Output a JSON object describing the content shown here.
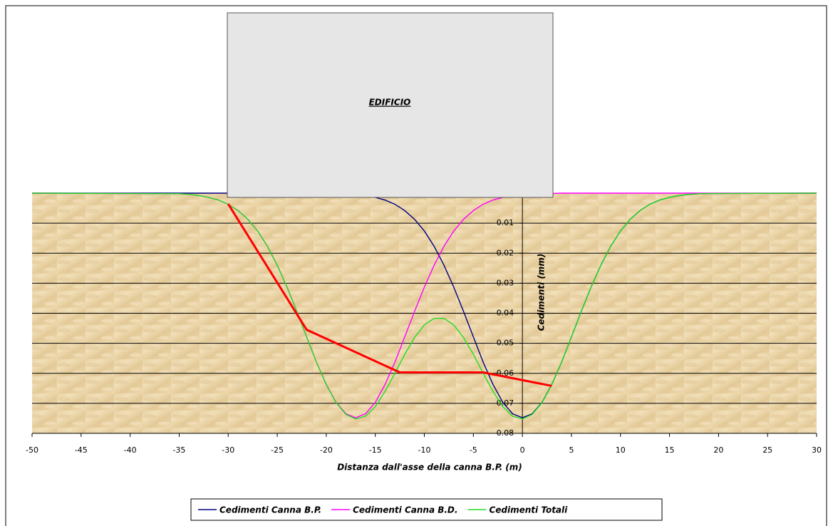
{
  "chart_data": {
    "type": "line",
    "annotation": "EDIFICIO",
    "xlabel": "Distanza dall'asse della canna B.P. (m)",
    "ylabel": "Cedimenti (mm)",
    "xlim": [
      -50,
      30
    ],
    "xticks": [
      -50,
      -45,
      -40,
      -35,
      -30,
      -25,
      -20,
      -15,
      -10,
      -5,
      0,
      5,
      10,
      15,
      20,
      25,
      30
    ],
    "ylim": [
      0,
      0.08
    ],
    "y_inverted": true,
    "yticks": [
      0.01,
      0.02,
      0.03,
      0.04,
      0.05,
      0.06,
      0.07,
      0.08
    ],
    "grid": true,
    "legend": "bottom",
    "x": [
      -50,
      -35,
      -34,
      -33,
      -32,
      -31,
      -30,
      -29,
      -28,
      -27,
      -26,
      -25,
      -24,
      -23,
      -22,
      -21,
      -20,
      -19,
      -18,
      -17,
      -16,
      -15,
      -14,
      -13,
      -12,
      -11,
      -10,
      -9,
      -8,
      -7,
      -6,
      -5,
      -4,
      -3,
      -2,
      -1,
      0,
      1,
      2,
      3,
      4,
      5,
      6,
      7,
      8,
      9,
      10,
      11,
      12,
      13,
      14,
      15,
      16,
      17,
      18,
      19,
      20,
      30
    ],
    "series": [
      {
        "name": "Cedimenti Canna B.P.",
        "color": "#000080",
        "values": [
          0,
          0,
          0,
          0,
          0,
          0,
          0,
          0,
          0,
          0,
          0,
          0,
          0,
          0,
          0,
          0,
          0.0001,
          0.0001,
          0.0002,
          0.0004,
          0.0008,
          0.0014,
          0.0023,
          0.0037,
          0.0058,
          0.0087,
          0.0126,
          0.0177,
          0.024,
          0.0313,
          0.0394,
          0.0479,
          0.0563,
          0.0637,
          0.0697,
          0.0735,
          0.0748,
          0.0735,
          0.0697,
          0.0637,
          0.0563,
          0.0479,
          0.0394,
          0.0313,
          0.024,
          0.0177,
          0.0126,
          0.0087,
          0.0058,
          0.0037,
          0.0023,
          0.0014,
          0.0008,
          0.0004,
          0.0002,
          0.0001,
          0.0001,
          0
        ]
      },
      {
        "name": "Cedimenti Canna B.D.",
        "color": "#ff00ff",
        "values": [
          0,
          0.0002,
          0.0004,
          0.0008,
          0.0014,
          0.0023,
          0.0037,
          0.0058,
          0.0087,
          0.0126,
          0.0177,
          0.024,
          0.0313,
          0.0394,
          0.0479,
          0.0563,
          0.0637,
          0.0697,
          0.0735,
          0.0748,
          0.0735,
          0.0697,
          0.0637,
          0.0563,
          0.0479,
          0.0394,
          0.0313,
          0.024,
          0.0177,
          0.0126,
          0.0087,
          0.0058,
          0.0037,
          0.0023,
          0.0014,
          0.0008,
          0.0004,
          0.0002,
          0.0001,
          0.0001,
          0,
          0,
          0,
          0,
          0,
          0,
          0,
          0,
          0,
          0,
          0,
          0,
          0,
          0,
          0,
          0,
          0,
          0
        ]
      },
      {
        "name": "Cedimenti Totali",
        "color": "#22dd22",
        "values": [
          0,
          0.0002,
          0.0004,
          0.0008,
          0.0014,
          0.0023,
          0.0037,
          0.0058,
          0.0087,
          0.0126,
          0.0177,
          0.024,
          0.0313,
          0.0394,
          0.0479,
          0.0563,
          0.0638,
          0.0698,
          0.0737,
          0.0752,
          0.0743,
          0.0711,
          0.066,
          0.06,
          0.0537,
          0.0481,
          0.0439,
          0.0417,
          0.0417,
          0.0439,
          0.0481,
          0.0537,
          0.06,
          0.066,
          0.0711,
          0.0743,
          0.0752,
          0.0737,
          0.0698,
          0.0638,
          0.0563,
          0.0479,
          0.0394,
          0.0313,
          0.024,
          0.0177,
          0.0126,
          0.0087,
          0.0058,
          0.0037,
          0.0023,
          0.0014,
          0.0008,
          0.0004,
          0.0002,
          0.0001,
          0.0001,
          0
        ]
      },
      {
        "color": "#ff0000",
        "x": [
          -30,
          -22,
          -12.5,
          -4,
          3
        ],
        "values": [
          0.0036,
          0.0455,
          0.0597,
          0.0597,
          0.0642
        ]
      }
    ]
  }
}
